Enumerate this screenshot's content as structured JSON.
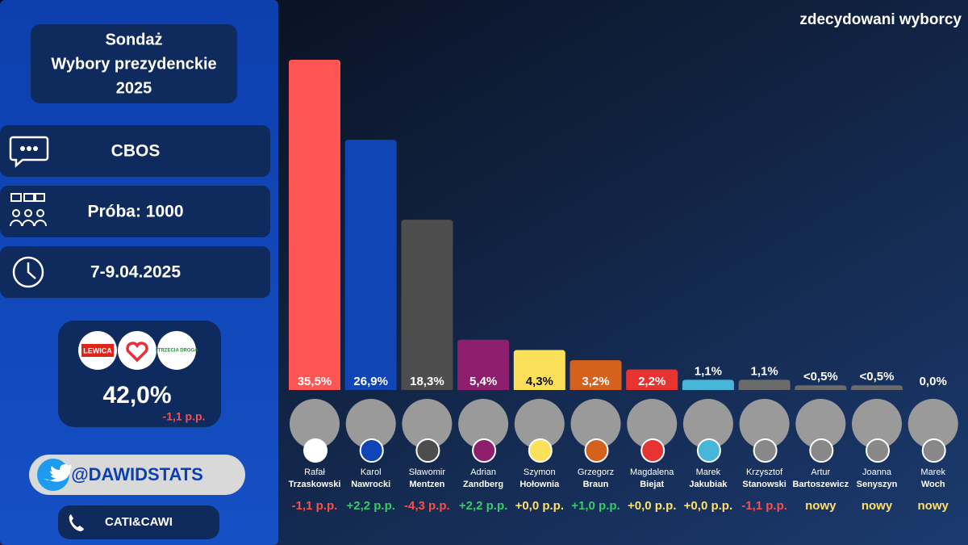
{
  "chart_data": {
    "type": "bar",
    "title": "zdecydowani wyborcy",
    "categories": [
      {
        "first": "Rafał",
        "last": "Trzaskowski"
      },
      {
        "first": "Karol",
        "last": "Nawrocki"
      },
      {
        "first": "Sławomir",
        "last": "Mentzen"
      },
      {
        "first": "Adrian",
        "last": "Zandberg"
      },
      {
        "first": "Szymon",
        "last": "Hołownia"
      },
      {
        "first": "Grzegorz",
        "last": "Braun"
      },
      {
        "first": "Magdalena",
        "last": "Biejat"
      },
      {
        "first": "Marek",
        "last": "Jakubiak"
      },
      {
        "first": "Krzysztof",
        "last": "Stanowski"
      },
      {
        "first": "Artur",
        "last": "Bartoszewicz"
      },
      {
        "first": "Joanna",
        "last": "Senyszyn"
      },
      {
        "first": "Marek",
        "last": "Woch"
      }
    ],
    "values": [
      35.5,
      26.9,
      18.3,
      5.4,
      4.3,
      3.2,
      2.2,
      1.1,
      1.1,
      0.5,
      0.5,
      0.0
    ],
    "value_labels": [
      "35,5%",
      "26,9%",
      "18,3%",
      "5,4%",
      "4,3%",
      "3,2%",
      "2,2%",
      "1,1%",
      "1,1%",
      "<0,5%",
      "<0,5%",
      "0,0%"
    ],
    "colors": [
      "#fe5555",
      "#1045b5",
      "#4d4d4d",
      "#8e1f6e",
      "#fde05a",
      "#d4621c",
      "#e83333",
      "#48b6da",
      "#6b6b6b",
      "#6b6b6b",
      "#6b6b6b",
      "#6b6b6b"
    ],
    "changes": [
      "-1,1 p.p.",
      "+2,2 p.p.",
      "-4,3 p.p.",
      "+2,2 p.p.",
      "+0,0 p.p.",
      "+1,0 p.p.",
      "+0,0 p.p.",
      "+0,0 p.p.",
      "-1,1 p.p.",
      "nowy",
      "nowy",
      "nowy"
    ],
    "change_colors": [
      "#ff4d4d",
      "#33cc66",
      "#ff4d4d",
      "#33cc66",
      "#ffe066",
      "#33cc66",
      "#ffe066",
      "#ffe066",
      "#ff4d4d",
      "#ffe066",
      "#ffe066",
      "#ffe066"
    ]
  },
  "panel": {
    "title": [
      "Sondaż",
      "Wybory prezydenckie",
      "2025"
    ],
    "pollster": "CBOS",
    "sample": "Próba: 1000",
    "dates": "7-9.04.2025",
    "coalition": {
      "logos": [
        "LEWICA",
        "#TRZECIA DROGA"
      ],
      "value": "42,0%",
      "change": "-1,1 p.p."
    },
    "handle": "@DAWIDSTATS",
    "method": "CATI&CAWI"
  }
}
